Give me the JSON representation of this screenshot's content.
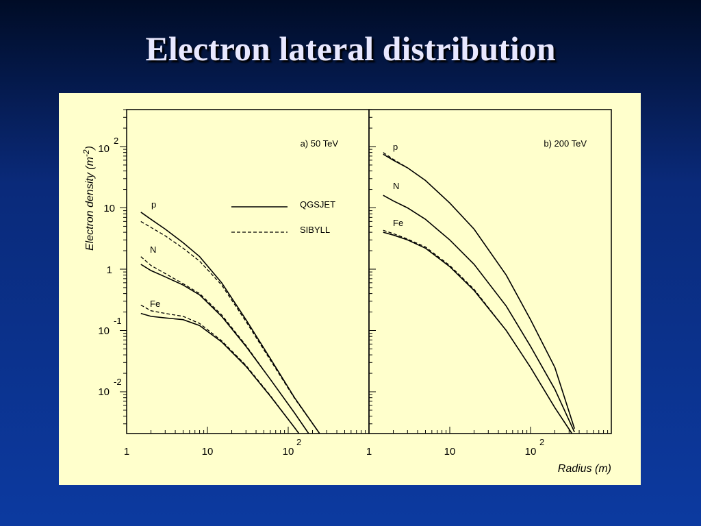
{
  "slide": {
    "title": "Electron lateral distribution"
  },
  "figure": {
    "ylabel_main": "Electron density (m",
    "ylabel_exp": "-2",
    "ylabel_close": ")",
    "xlabel": "Radius (m)",
    "legend": [
      {
        "label": "QGSJET",
        "style": "solid"
      },
      {
        "label": "SIBYLL",
        "style": "dashed"
      }
    ],
    "y_ticks": [
      {
        "base": "10",
        "exp": "2"
      },
      {
        "base": "10",
        "exp": ""
      },
      {
        "base": "1",
        "exp": ""
      },
      {
        "base": "10",
        "exp": "-1"
      },
      {
        "base": "10",
        "exp": "-2"
      }
    ],
    "x_ticks": [
      {
        "base": "1",
        "exp": ""
      },
      {
        "base": "10",
        "exp": ""
      },
      {
        "base": "10",
        "exp": "2"
      }
    ]
  },
  "chart_data": [
    {
      "type": "line",
      "title": "a) 50 TeV",
      "xlabel": "Radius (m)",
      "ylabel": "Electron density (m-2)",
      "x_scale": "log",
      "y_scale": "log",
      "xlim": [
        1,
        300
      ],
      "ylim": [
        0.002,
        500
      ],
      "series": [
        {
          "name": "QGSJET",
          "label": "p",
          "style": "solid",
          "x": [
            1.5,
            2,
            3,
            5,
            8,
            15,
            30,
            60,
            120,
            250
          ],
          "y": [
            8.5,
            6.5,
            4.5,
            2.7,
            1.6,
            0.6,
            0.15,
            0.035,
            0.008,
            0.002
          ]
        },
        {
          "name": "SIBYLL",
          "label": "p",
          "style": "dashed",
          "x": [
            1.5,
            2,
            3,
            5,
            8,
            15,
            30,
            60,
            120,
            250
          ],
          "y": [
            6.0,
            4.8,
            3.5,
            2.2,
            1.35,
            0.55,
            0.14,
            0.033,
            0.0078,
            0.002
          ]
        },
        {
          "name": "QGSJET",
          "label": "N",
          "style": "solid",
          "x": [
            1.5,
            2,
            3,
            5,
            8,
            15,
            30,
            60,
            120,
            250
          ],
          "y": [
            1.2,
            0.95,
            0.75,
            0.55,
            0.38,
            0.17,
            0.055,
            0.016,
            0.0045,
            0.0011
          ]
        },
        {
          "name": "SIBYLL",
          "label": "N",
          "style": "dashed",
          "x": [
            1.5,
            2,
            3,
            5,
            8,
            15,
            30,
            60,
            120,
            250
          ],
          "y": [
            1.6,
            1.15,
            0.85,
            0.58,
            0.4,
            0.18,
            0.057,
            0.016,
            0.0045,
            0.0011
          ]
        },
        {
          "name": "QGSJET",
          "label": "Fe",
          "style": "solid",
          "x": [
            1.5,
            2,
            3,
            5,
            8,
            15,
            30,
            60,
            120,
            250
          ],
          "y": [
            0.19,
            0.17,
            0.16,
            0.15,
            0.12,
            0.065,
            0.026,
            0.0085,
            0.0026,
            0.0007
          ]
        },
        {
          "name": "SIBYLL",
          "label": "Fe",
          "style": "dashed",
          "x": [
            1.5,
            2,
            3,
            5,
            8,
            15,
            30,
            60,
            120,
            250
          ],
          "y": [
            0.26,
            0.21,
            0.19,
            0.17,
            0.13,
            0.068,
            0.027,
            0.0087,
            0.0026,
            0.0007
          ]
        }
      ]
    },
    {
      "type": "line",
      "title": "b) 200 TeV",
      "xlabel": "Radius (m)",
      "ylabel": "Electron density (m-2)",
      "x_scale": "log",
      "y_scale": "log",
      "xlim": [
        1,
        300
      ],
      "ylim": [
        0.002,
        500
      ],
      "series": [
        {
          "name": "QGSJET",
          "label": "p",
          "style": "solid",
          "x": [
            1.5,
            2,
            3,
            5,
            10,
            20,
            50,
            100,
            200,
            350
          ],
          "y": [
            75,
            60,
            45,
            28,
            12,
            4.5,
            0.8,
            0.15,
            0.025,
            0.0025
          ]
        },
        {
          "name": "SIBYLL",
          "label": "p",
          "style": "dashed",
          "x": [
            1.5,
            2,
            3,
            5,
            10,
            20,
            50,
            100,
            200,
            350
          ],
          "y": [
            80,
            62,
            45,
            28,
            12,
            4.5,
            0.8,
            0.15,
            0.025,
            0.0025
          ]
        },
        {
          "name": "QGSJET",
          "label": "N",
          "style": "solid",
          "x": [
            1.5,
            2,
            3,
            5,
            10,
            20,
            50,
            100,
            200,
            350
          ],
          "y": [
            16,
            13,
            10,
            6.5,
            3.0,
            1.2,
            0.25,
            0.055,
            0.011,
            0.0022
          ]
        },
        {
          "name": "SIBYLL",
          "label": "N",
          "style": "dashed",
          "x": [
            1.5,
            2,
            3,
            5,
            10,
            20,
            50,
            100,
            200,
            350
          ],
          "y": [
            16,
            13,
            10,
            6.5,
            3.0,
            1.2,
            0.25,
            0.055,
            0.011,
            0.0022
          ]
        },
        {
          "name": "QGSJET",
          "label": "Fe",
          "style": "solid",
          "x": [
            1.5,
            2,
            3,
            5,
            10,
            20,
            50,
            100,
            200,
            350
          ],
          "y": [
            4.0,
            3.6,
            3.0,
            2.2,
            1.1,
            0.45,
            0.1,
            0.025,
            0.0055,
            0.0018
          ]
        },
        {
          "name": "SIBYLL",
          "label": "Fe",
          "style": "dashed",
          "x": [
            1.5,
            2,
            3,
            5,
            10,
            20,
            50,
            100,
            200,
            350
          ],
          "y": [
            4.3,
            3.8,
            3.1,
            2.3,
            1.15,
            0.47,
            0.1,
            0.025,
            0.0055,
            0.0018
          ]
        }
      ]
    }
  ]
}
